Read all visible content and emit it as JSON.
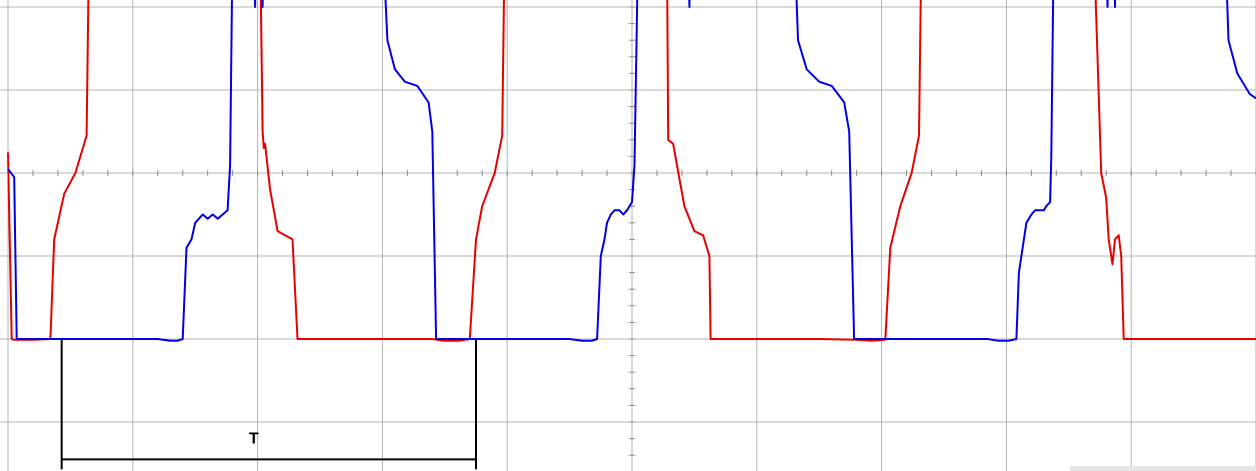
{
  "chart_data": {
    "type": "line",
    "grid": true,
    "grid_divisions": {
      "x": 10,
      "y": 5
    },
    "ylim": [
      0,
      5
    ],
    "xlim": [
      0,
      10
    ],
    "period_label": "T",
    "period_x": [
      0.43,
      3.75
    ],
    "series": [
      {
        "color": "#e60000",
        "points": [
          [
            0.0,
            2.25
          ],
          [
            0.03,
            0.0
          ],
          [
            0.05,
            -0.01
          ],
          [
            0.2,
            -0.01
          ],
          [
            0.34,
            0.0
          ],
          [
            0.37,
            1.2
          ],
          [
            0.45,
            1.75
          ],
          [
            0.54,
            2.0
          ],
          [
            0.63,
            2.45
          ],
          [
            0.65,
            4.8
          ],
          [
            0.67,
            4.88
          ],
          [
            0.75,
            4.75
          ],
          [
            0.85,
            4.65
          ],
          [
            0.97,
            4.7
          ],
          [
            1.06,
            4.85
          ],
          [
            1.12,
            4.88
          ],
          [
            1.15,
            4.85
          ],
          [
            1.2,
            4.86
          ],
          [
            1.21,
            4.2
          ],
          [
            1.22,
            4.86
          ],
          [
            1.25,
            4.86
          ],
          [
            1.26,
            4.2
          ],
          [
            1.27,
            4.86
          ],
          [
            1.31,
            4.86
          ],
          [
            1.32,
            4.2
          ],
          [
            1.33,
            4.86
          ],
          [
            1.38,
            4.86
          ],
          [
            1.39,
            4.25
          ],
          [
            1.4,
            4.86
          ],
          [
            1.5,
            4.86
          ],
          [
            1.7,
            4.86
          ],
          [
            1.8,
            4.85
          ],
          [
            1.95,
            4.85
          ],
          [
            2.02,
            4.8
          ],
          [
            2.04,
            2.5
          ],
          [
            2.05,
            2.3
          ],
          [
            2.06,
            2.35
          ],
          [
            2.1,
            1.8
          ],
          [
            2.16,
            1.3
          ],
          [
            2.22,
            1.25
          ],
          [
            2.28,
            1.2
          ],
          [
            2.32,
            0.0
          ],
          [
            2.6,
            0.0
          ],
          [
            3.0,
            0.0
          ],
          [
            3.4,
            0.0
          ],
          [
            3.49,
            -0.02
          ],
          [
            3.62,
            -0.02
          ],
          [
            3.7,
            0.0
          ],
          [
            3.75,
            1.2
          ],
          [
            3.8,
            1.6
          ],
          [
            3.9,
            2.0
          ],
          [
            3.96,
            2.45
          ],
          [
            3.98,
            4.8
          ],
          [
            4.0,
            4.88
          ],
          [
            4.08,
            4.75
          ],
          [
            4.2,
            4.65
          ],
          [
            4.32,
            4.7
          ],
          [
            4.41,
            4.85
          ],
          [
            4.5,
            4.88
          ],
          [
            4.58,
            4.85
          ],
          [
            4.62,
            4.86
          ],
          [
            4.63,
            4.2
          ],
          [
            4.64,
            4.86
          ],
          [
            4.67,
            4.86
          ],
          [
            4.68,
            4.2
          ],
          [
            4.69,
            4.86
          ],
          [
            4.72,
            4.86
          ],
          [
            4.73,
            4.2
          ],
          [
            4.74,
            4.86
          ],
          [
            4.77,
            4.86
          ],
          [
            4.78,
            4.2
          ],
          [
            4.79,
            4.86
          ],
          [
            4.85,
            4.86
          ],
          [
            5.05,
            4.86
          ],
          [
            5.15,
            4.85
          ],
          [
            5.2,
            4.85
          ],
          [
            5.28,
            4.8
          ],
          [
            5.29,
            2.4
          ],
          [
            5.33,
            2.35
          ],
          [
            5.36,
            2.1
          ],
          [
            5.42,
            1.6
          ],
          [
            5.5,
            1.3
          ],
          [
            5.57,
            1.25
          ],
          [
            5.62,
            1.0
          ],
          [
            5.63,
            0.0
          ],
          [
            6.0,
            0.0
          ],
          [
            6.5,
            0.0
          ],
          [
            6.8,
            -0.01
          ],
          [
            6.92,
            -0.02
          ],
          [
            7.03,
            -0.01
          ],
          [
            7.07,
            1.1
          ],
          [
            7.15,
            1.6
          ],
          [
            7.24,
            2.0
          ],
          [
            7.3,
            2.45
          ],
          [
            7.32,
            4.8
          ],
          [
            7.35,
            4.88
          ],
          [
            7.42,
            4.75
          ],
          [
            7.55,
            4.65
          ],
          [
            7.67,
            4.7
          ],
          [
            7.77,
            4.85
          ],
          [
            7.84,
            4.88
          ],
          [
            7.88,
            4.85
          ],
          [
            7.9,
            4.86
          ],
          [
            7.91,
            4.2
          ],
          [
            7.92,
            4.86
          ],
          [
            7.95,
            4.86
          ],
          [
            7.96,
            4.2
          ],
          [
            7.97,
            4.86
          ],
          [
            8.0,
            4.86
          ],
          [
            8.01,
            4.2
          ],
          [
            8.02,
            4.86
          ],
          [
            8.05,
            4.86
          ],
          [
            8.06,
            4.2
          ],
          [
            8.07,
            4.86
          ],
          [
            8.1,
            4.86
          ],
          [
            8.11,
            4.2
          ],
          [
            8.12,
            4.86
          ],
          [
            8.15,
            4.86
          ],
          [
            8.16,
            4.2
          ],
          [
            8.17,
            4.86
          ],
          [
            8.2,
            4.86
          ],
          [
            8.21,
            4.25
          ],
          [
            8.22,
            4.86
          ],
          [
            8.4,
            4.86
          ],
          [
            8.6,
            4.85
          ],
          [
            8.7,
            4.8
          ],
          [
            8.76,
            2.0
          ],
          [
            8.8,
            1.7
          ],
          [
            8.82,
            1.2
          ],
          [
            8.85,
            0.9
          ],
          [
            8.87,
            1.2
          ],
          [
            8.9,
            1.25
          ],
          [
            8.92,
            1.0
          ],
          [
            8.94,
            0.0
          ],
          [
            9.5,
            0.0
          ],
          [
            10.0,
            0.0
          ]
        ]
      },
      {
        "color": "#0000e6",
        "points": [
          [
            0.0,
            2.05
          ],
          [
            0.05,
            1.95
          ],
          [
            0.07,
            0.0
          ],
          [
            0.4,
            0.0
          ],
          [
            0.8,
            0.0
          ],
          [
            1.2,
            0.0
          ],
          [
            1.3,
            -0.02
          ],
          [
            1.36,
            -0.02
          ],
          [
            1.4,
            0.0
          ],
          [
            1.43,
            1.1
          ],
          [
            1.47,
            1.2
          ],
          [
            1.5,
            1.4
          ],
          [
            1.53,
            1.45
          ],
          [
            1.56,
            1.5
          ],
          [
            1.6,
            1.45
          ],
          [
            1.64,
            1.5
          ],
          [
            1.68,
            1.45
          ],
          [
            1.72,
            1.5
          ],
          [
            1.76,
            1.55
          ],
          [
            1.78,
            2.1
          ],
          [
            1.8,
            4.8
          ],
          [
            1.85,
            4.86
          ],
          [
            1.89,
            4.86
          ],
          [
            1.9,
            4.5
          ],
          [
            1.91,
            4.86
          ],
          [
            1.95,
            4.86
          ],
          [
            1.97,
            4.86
          ],
          [
            1.98,
            4.0
          ],
          [
            1.99,
            4.86
          ],
          [
            2.03,
            4.86
          ],
          [
            2.04,
            4.0
          ],
          [
            2.05,
            4.86
          ],
          [
            2.2,
            4.86
          ],
          [
            2.4,
            4.8
          ],
          [
            2.55,
            4.75
          ],
          [
            2.65,
            4.8
          ],
          [
            2.8,
            4.85
          ],
          [
            2.9,
            4.95
          ],
          [
            2.97,
            4.95
          ],
          [
            3.0,
            4.9
          ],
          [
            3.04,
            3.6
          ],
          [
            3.1,
            3.25
          ],
          [
            3.18,
            3.1
          ],
          [
            3.28,
            3.05
          ],
          [
            3.37,
            2.85
          ],
          [
            3.4,
            2.5
          ],
          [
            3.43,
            0.0
          ],
          [
            3.7,
            0.0
          ],
          [
            4.0,
            0.0
          ],
          [
            4.3,
            0.0
          ],
          [
            4.5,
            0.0
          ],
          [
            4.6,
            -0.02
          ],
          [
            4.68,
            -0.02
          ],
          [
            4.72,
            0.0
          ],
          [
            4.75,
            1.0
          ],
          [
            4.78,
            1.2
          ],
          [
            4.8,
            1.4
          ],
          [
            4.83,
            1.5
          ],
          [
            4.86,
            1.55
          ],
          [
            4.9,
            1.55
          ],
          [
            4.93,
            1.5
          ],
          [
            4.96,
            1.55
          ],
          [
            5.0,
            1.65
          ],
          [
            5.02,
            2.1
          ],
          [
            5.05,
            4.8
          ],
          [
            5.1,
            4.86
          ],
          [
            5.2,
            4.86
          ],
          [
            5.3,
            4.85
          ],
          [
            5.31,
            4.2
          ],
          [
            5.32,
            4.86
          ],
          [
            5.35,
            4.86
          ],
          [
            5.4,
            4.86
          ],
          [
            5.45,
            4.86
          ],
          [
            5.46,
            4.0
          ],
          [
            5.47,
            4.86
          ],
          [
            5.55,
            4.86
          ],
          [
            5.7,
            4.8
          ],
          [
            5.85,
            4.75
          ],
          [
            6.0,
            4.8
          ],
          [
            6.15,
            4.9
          ],
          [
            6.25,
            4.95
          ],
          [
            6.3,
            4.9
          ],
          [
            6.33,
            3.6
          ],
          [
            6.4,
            3.25
          ],
          [
            6.5,
            3.1
          ],
          [
            6.6,
            3.05
          ],
          [
            6.7,
            2.85
          ],
          [
            6.74,
            2.5
          ],
          [
            6.78,
            0.0
          ],
          [
            7.0,
            0.0
          ],
          [
            7.5,
            0.0
          ],
          [
            7.85,
            0.0
          ],
          [
            7.93,
            -0.02
          ],
          [
            8.02,
            -0.02
          ],
          [
            8.08,
            0.0
          ],
          [
            8.1,
            0.8
          ],
          [
            8.12,
            1.0
          ],
          [
            8.14,
            1.2
          ],
          [
            8.16,
            1.4
          ],
          [
            8.2,
            1.5
          ],
          [
            8.23,
            1.55
          ],
          [
            8.26,
            1.55
          ],
          [
            8.3,
            1.55
          ],
          [
            8.32,
            1.6
          ],
          [
            8.35,
            1.65
          ],
          [
            8.36,
            2.2
          ],
          [
            8.38,
            4.8
          ],
          [
            8.42,
            4.86
          ],
          [
            8.5,
            4.86
          ],
          [
            8.6,
            4.86
          ],
          [
            8.7,
            4.86
          ],
          [
            8.8,
            4.85
          ],
          [
            8.81,
            4.0
          ],
          [
            8.82,
            4.86
          ],
          [
            8.86,
            4.86
          ],
          [
            8.87,
            4.0
          ],
          [
            8.88,
            4.86
          ],
          [
            8.95,
            4.86
          ],
          [
            9.1,
            4.8
          ],
          [
            9.3,
            4.75
          ],
          [
            9.45,
            4.85
          ],
          [
            9.6,
            4.95
          ],
          [
            9.7,
            4.95
          ],
          [
            9.75,
            4.9
          ],
          [
            9.78,
            3.6
          ],
          [
            9.85,
            3.2
          ],
          [
            9.95,
            2.95
          ],
          [
            10.0,
            2.9
          ]
        ]
      }
    ]
  }
}
